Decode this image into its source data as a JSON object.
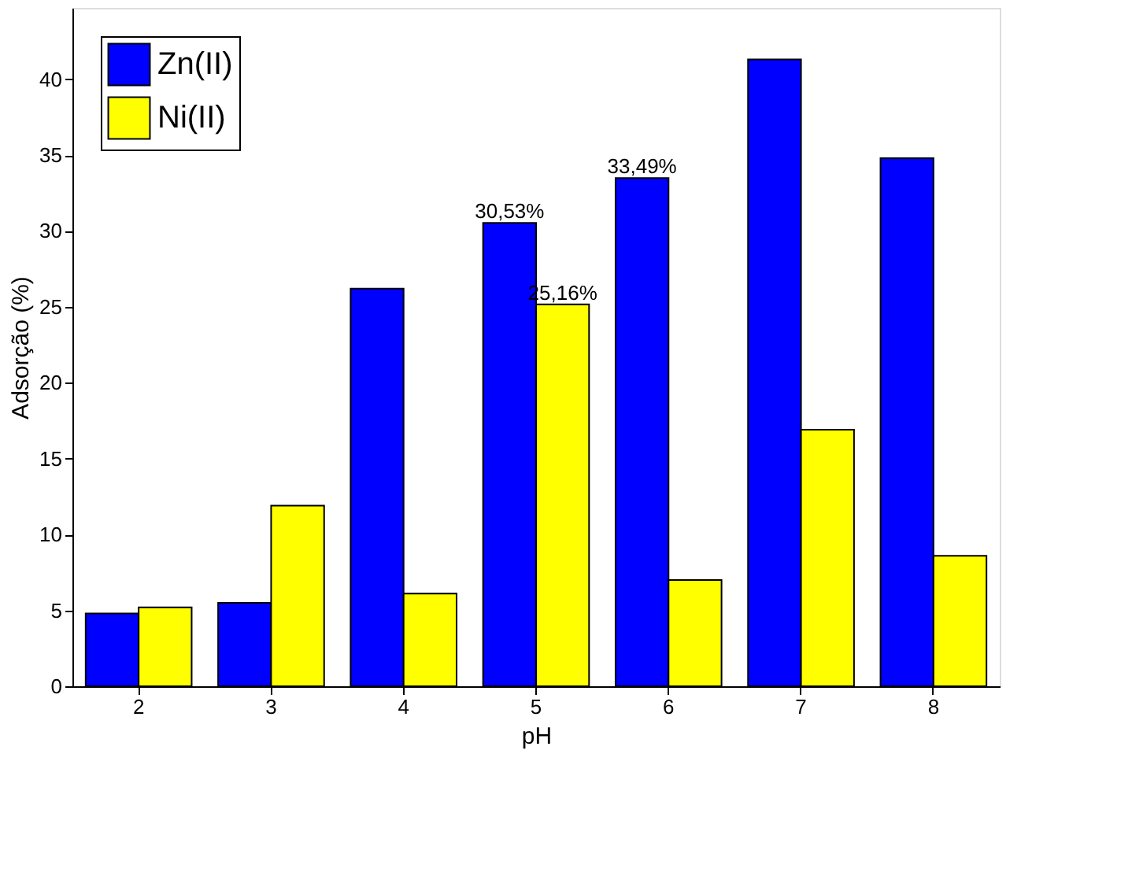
{
  "chart_data": {
    "type": "bar",
    "xlabel": "pH",
    "ylabel": "Adsorção (%)",
    "categories": [
      "2",
      "3",
      "4",
      "5",
      "6",
      "7",
      "8"
    ],
    "series": [
      {
        "name": "Zn(II)",
        "color": "#0000ff",
        "values": [
          4.8,
          5.5,
          26.2,
          30.53,
          33.49,
          41.3,
          34.8
        ],
        "value_labels": [
          null,
          null,
          null,
          "30,53%",
          "33,49%",
          null,
          null
        ]
      },
      {
        "name": "Ni(II)",
        "color": "#ffff00",
        "values": [
          5.2,
          11.9,
          6.1,
          25.16,
          7.0,
          16.9,
          8.6
        ],
        "value_labels": [
          null,
          null,
          null,
          "25,16%",
          null,
          null,
          null
        ]
      }
    ],
    "ylim": [
      0,
      44.7
    ],
    "yticks": [
      0,
      5,
      10,
      15,
      20,
      25,
      30,
      35,
      40
    ],
    "grid": false,
    "legend": "top left"
  }
}
